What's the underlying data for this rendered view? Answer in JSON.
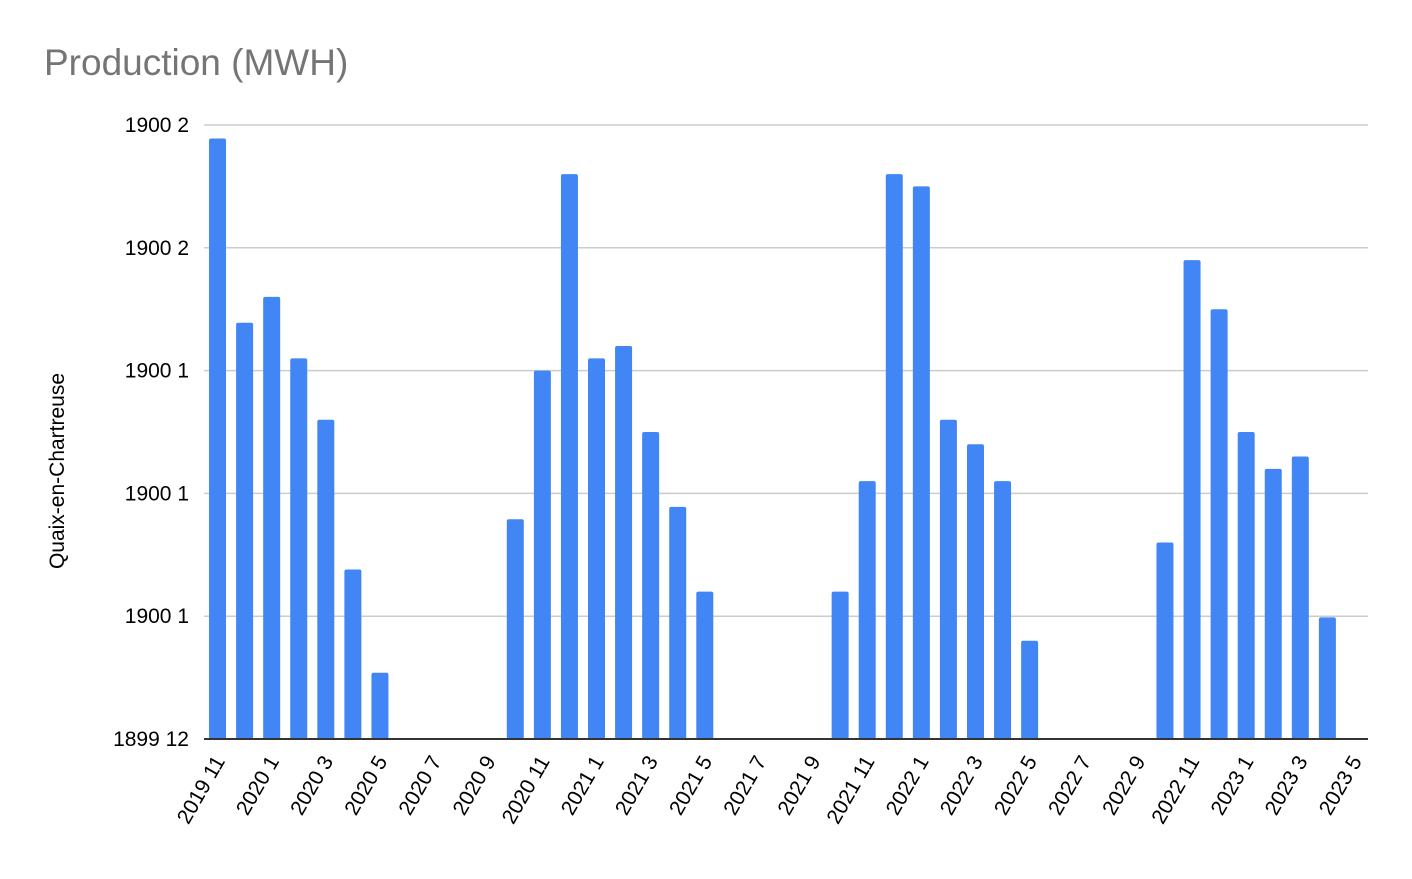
{
  "chart_data": {
    "type": "bar",
    "title": "Production (MWH)",
    "ylabel": "Quaix-en-Chartreuse",
    "xlabel": "",
    "grid": true,
    "legend": "none",
    "bar_color": "#4285f4",
    "ylim": [
      0,
      5
    ],
    "y_ticks": [
      {
        "value": 0,
        "label": "1899 12"
      },
      {
        "value": 1,
        "label": "1900 1"
      },
      {
        "value": 2,
        "label": "1900 1"
      },
      {
        "value": 3,
        "label": "1900 1"
      },
      {
        "value": 4,
        "label": "1900 2"
      },
      {
        "value": 5,
        "label": "1900 2"
      }
    ],
    "categories": [
      "2019 11",
      "2019 12",
      "2020 1",
      "2020 2",
      "2020 3",
      "2020 4",
      "2020 5",
      "2020 6",
      "2020 7",
      "2020 8",
      "2020 9",
      "2020 10",
      "2020 11",
      "2020 12",
      "2021 1",
      "2021 2",
      "2021 3",
      "2021 4",
      "2021 5",
      "2021 6",
      "2021 7",
      "2021 8",
      "2021 9",
      "2021 10",
      "2021 11",
      "2021 12",
      "2022 1",
      "2022 2",
      "2022 3",
      "2022 4",
      "2022 5",
      "2022 6",
      "2022 7",
      "2022 8",
      "2022 9",
      "2022 10",
      "2022 11",
      "2022 12",
      "2023 1",
      "2023 2",
      "2023 3",
      "2023 4",
      "2023 5"
    ],
    "tick_labels": [
      "2019 11",
      "2020 1",
      "2020 3",
      "2020 5",
      "2020 7",
      "2020 9",
      "2020 11",
      "2021 1",
      "2021 3",
      "2021 5",
      "2021 7",
      "2021 9",
      "2021 11",
      "2022 1",
      "2022 3",
      "2022 5",
      "2022 7",
      "2022 9",
      "2022 11",
      "2023 1",
      "2023 3",
      "2023 5"
    ],
    "values": [
      4.89,
      3.39,
      3.6,
      3.1,
      2.6,
      1.38,
      0.54,
      0,
      0,
      0,
      0,
      1.79,
      3.0,
      4.6,
      3.1,
      3.2,
      2.5,
      1.89,
      1.2,
      0,
      0,
      0,
      0,
      1.2,
      2.1,
      4.6,
      4.5,
      2.6,
      2.4,
      2.1,
      0.8,
      0,
      0,
      0,
      0,
      1.6,
      3.9,
      3.5,
      2.5,
      2.2,
      2.3,
      0.99,
      0
    ]
  }
}
